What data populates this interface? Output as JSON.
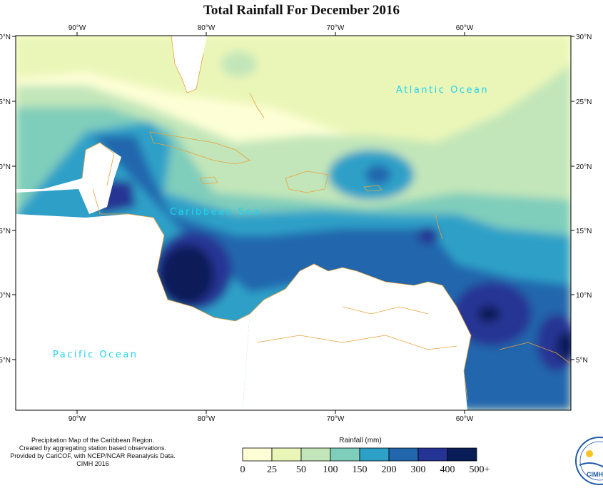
{
  "title": "Total Rainfall For December 2016",
  "axes": {
    "top_lon": [
      "90°W",
      "80°W",
      "70°W",
      "60°W"
    ],
    "bottom_lon": [
      "90°W",
      "80°W",
      "70°W",
      "60°W"
    ],
    "left_lat": [
      "30°N",
      "25°N",
      "20°N",
      "15°N",
      "10°N",
      "5°N"
    ],
    "right_lat": [
      "30°N",
      "25°N",
      "20°N",
      "15°N",
      "10°N",
      "5°N"
    ]
  },
  "labels": {
    "atlantic": "Atlantic Ocean",
    "caribbean": "Caribbean Sea",
    "pacific": "Pacific Ocean"
  },
  "credits": [
    "Precipitation Map of the Caribbean Region.",
    "Created by aggregating station based observations.",
    "Provided by CariCOF, with NCEP/NCAR Reanalysis Data.",
    "CIMH 2016"
  ],
  "legend": {
    "title": "Rainfall (mm)",
    "ticks": [
      "0",
      "25",
      "50",
      "100",
      "150",
      "200",
      "300",
      "400",
      "500+"
    ],
    "colors": [
      "#fdfed5",
      "#eaf6b8",
      "#c2e6b9",
      "#7fcdbb",
      "#2da0c8",
      "#2266ad",
      "#253494",
      "#081d58"
    ]
  },
  "logo": {
    "text": "CIMH"
  }
}
